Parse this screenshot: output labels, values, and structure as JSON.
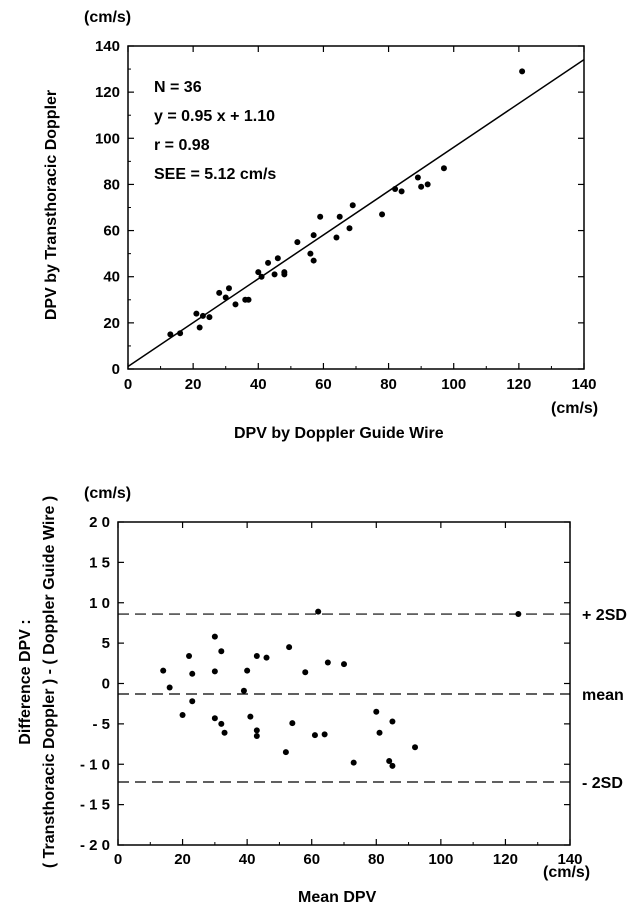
{
  "chart_data": [
    {
      "type": "scatter",
      "unit_x": "(cm/s)",
      "unit_y": "(cm/s)",
      "xlabel": "DPV by Doppler Guide Wire",
      "ylabel": "DPV by Transthoracic Doppler",
      "xlim": [
        0,
        140
      ],
      "ylim": [
        0,
        140
      ],
      "xticks": [
        "0",
        "20",
        "40",
        "60",
        "80",
        "100",
        "120",
        "140"
      ],
      "yticks": [
        "0",
        "20",
        "40",
        "60",
        "80",
        "100",
        "120",
        "140"
      ],
      "annotations": [
        "N = 36",
        "y = 0.95 x + 1.10",
        "r = 0.98",
        "SEE = 5.12 cm/s"
      ],
      "regression": {
        "slope": 0.95,
        "intercept": 1.1
      },
      "points": [
        [
          13,
          15
        ],
        [
          16,
          15.5
        ],
        [
          21,
          24
        ],
        [
          22,
          18
        ],
        [
          23,
          23
        ],
        [
          25,
          22.5
        ],
        [
          28,
          33
        ],
        [
          30,
          31
        ],
        [
          31,
          35
        ],
        [
          33,
          28
        ],
        [
          36,
          30
        ],
        [
          37,
          30
        ],
        [
          40,
          42
        ],
        [
          41,
          40
        ],
        [
          43,
          46
        ],
        [
          45,
          41
        ],
        [
          46,
          48
        ],
        [
          48,
          42
        ],
        [
          52,
          55
        ],
        [
          56,
          50
        ],
        [
          57,
          47
        ],
        [
          57,
          58
        ],
        [
          59,
          66
        ],
        [
          64,
          57
        ],
        [
          65,
          66
        ],
        [
          68,
          61
        ],
        [
          69,
          71
        ],
        [
          78,
          67
        ],
        [
          82,
          78
        ],
        [
          84,
          77
        ],
        [
          89,
          83
        ],
        [
          90,
          79
        ],
        [
          92,
          80
        ],
        [
          97,
          87
        ],
        [
          121,
          129
        ],
        [
          48,
          41
        ]
      ]
    },
    {
      "type": "scatter",
      "unit_x": "(cm/s)",
      "unit_y": "(cm/s)",
      "xlabel": "Mean DPV",
      "ylabel": "Difference DPV :",
      "ylabel2": "( Transthoracic Doppler ) - ( Doppler Guide Wire )",
      "xlim": [
        0,
        140
      ],
      "ylim": [
        -20,
        20
      ],
      "xticks": [
        "0",
        "20",
        "40",
        "60",
        "80",
        "100",
        "120",
        "140"
      ],
      "yticks": [
        "- 2 0",
        "- 1 5",
        "- 1 0",
        "- 5",
        "0",
        "5",
        "1 0",
        "1 5",
        "2 0"
      ],
      "reference_lines": [
        {
          "label": "+ 2SD",
          "value": 8.6
        },
        {
          "label": "mean",
          "value": -1.3
        },
        {
          "label": "- 2SD",
          "value": -12.2
        }
      ],
      "points": [
        [
          14,
          1.6
        ],
        [
          16,
          -0.5
        ],
        [
          20,
          -3.9
        ],
        [
          22,
          3.4
        ],
        [
          23,
          -2.2
        ],
        [
          23,
          1.2
        ],
        [
          30,
          5.8
        ],
        [
          30,
          1.5
        ],
        [
          30,
          -4.3
        ],
        [
          32,
          4.0
        ],
        [
          32,
          -5.0
        ],
        [
          33,
          -6.1
        ],
        [
          39,
          -0.9
        ],
        [
          40,
          1.6
        ],
        [
          41,
          -4.1
        ],
        [
          43,
          3.4
        ],
        [
          43,
          -5.8
        ],
        [
          43,
          -6.5
        ],
        [
          46,
          3.2
        ],
        [
          52,
          -8.5
        ],
        [
          53,
          4.5
        ],
        [
          54,
          -4.9
        ],
        [
          58,
          1.4
        ],
        [
          61,
          -6.4
        ],
        [
          62,
          8.9
        ],
        [
          64,
          -6.3
        ],
        [
          65,
          2.6
        ],
        [
          70,
          2.4
        ],
        [
          73,
          -9.8
        ],
        [
          80,
          -3.5
        ],
        [
          81,
          -6.1
        ],
        [
          84,
          -9.6
        ],
        [
          85,
          -10.2
        ],
        [
          85,
          -4.7
        ],
        [
          92,
          -7.9
        ],
        [
          124,
          8.6
        ]
      ]
    }
  ],
  "colors": {
    "ink": "#000000",
    "background": "#ffffff"
  }
}
